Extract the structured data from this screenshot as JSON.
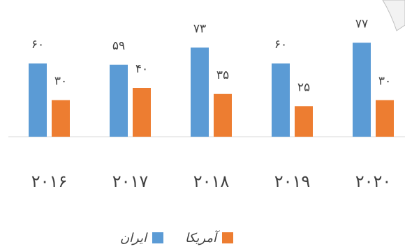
{
  "chart_data": {
    "type": "bar",
    "categories": [
      "۲۰۱۶",
      "۲۰۱۷",
      "۲۰۱۸",
      "۲۰۱۹",
      "۲۰۲۰"
    ],
    "series": [
      {
        "name": "ایران",
        "color": "#5B9BD5",
        "values": [
          60,
          59,
          73,
          60,
          77
        ],
        "labels": [
          "۶۰",
          "۵۹",
          "۷۳",
          "۶۰",
          "۷۷"
        ]
      },
      {
        "name": "آمریکا",
        "color": "#ED7D31",
        "values": [
          30,
          40,
          35,
          25,
          30
        ],
        "labels": [
          "۳۰",
          "۴۰",
          "۳۵",
          "۲۵",
          "۳۰"
        ]
      }
    ],
    "ylim": [
      0,
      80
    ],
    "grid": false,
    "legend": "bottom"
  }
}
